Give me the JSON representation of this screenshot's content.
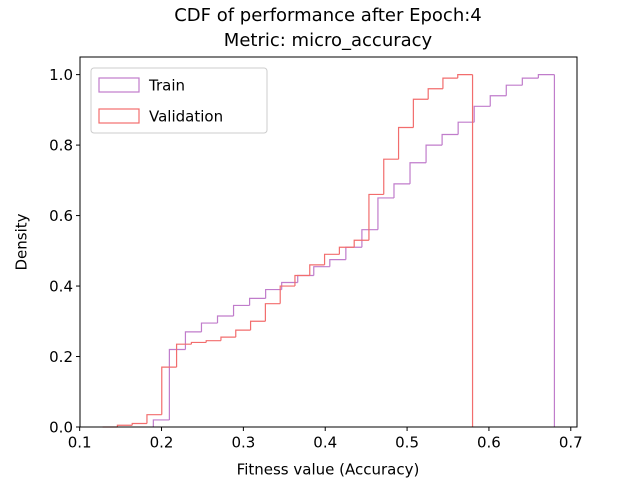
{
  "chart_data": {
    "type": "histogram",
    "title": [
      "CDF of performance after Epoch:4",
      "Metric: micro_accuracy"
    ],
    "x_label": "Fitness value (Accuracy)",
    "y_label": "Density",
    "xlim": [
      0.1004,
      0.7076
    ],
    "ylim": [
      0,
      1.05
    ],
    "xticks": [
      0.1,
      0.2,
      0.3,
      0.4,
      0.5,
      0.6,
      0.7
    ],
    "yticks": [
      {
        "value": 0,
        "label": "0.0"
      },
      0.2,
      0.4,
      0.6,
      0.8,
      {
        "value": 1,
        "label": "1.0"
      }
    ],
    "legend": "upper left",
    "series": [
      {
        "name": "Train",
        "color": "#c07ccb",
        "bins": [
          0.19,
          0.2096,
          0.2292,
          0.2488,
          0.2684,
          0.288,
          0.3076,
          0.3272,
          0.3468,
          0.3664,
          0.386,
          0.4056,
          0.4252,
          0.4448,
          0.4644,
          0.484,
          0.5036,
          0.5232,
          0.5428,
          0.5624,
          0.582,
          0.6016,
          0.6212,
          0.6408,
          0.6604,
          0.68
        ],
        "values": [
          0.02,
          0.22,
          0.27,
          0.295,
          0.315,
          0.345,
          0.365,
          0.39,
          0.41,
          0.43,
          0.455,
          0.475,
          0.51,
          0.56,
          0.65,
          0.69,
          0.75,
          0.8,
          0.83,
          0.865,
          0.91,
          0.94,
          0.97,
          0.99,
          1.0
        ]
      },
      {
        "name": "Validation",
        "color": "#f26d6d",
        "bins": [
          0.128,
          0.1461,
          0.1642,
          0.1822,
          0.2003,
          0.2184,
          0.2365,
          0.2546,
          0.2726,
          0.2907,
          0.3088,
          0.3269,
          0.345,
          0.363,
          0.3811,
          0.3992,
          0.4173,
          0.4354,
          0.4534,
          0.4715,
          0.4896,
          0.5077,
          0.5258,
          0.5438,
          0.5619,
          0.58
        ],
        "values": [
          0.0,
          0.005,
          0.01,
          0.035,
          0.17,
          0.235,
          0.24,
          0.245,
          0.255,
          0.275,
          0.3,
          0.35,
          0.4,
          0.43,
          0.46,
          0.49,
          0.51,
          0.53,
          0.66,
          0.76,
          0.85,
          0.93,
          0.96,
          0.99,
          1.0
        ]
      }
    ]
  }
}
